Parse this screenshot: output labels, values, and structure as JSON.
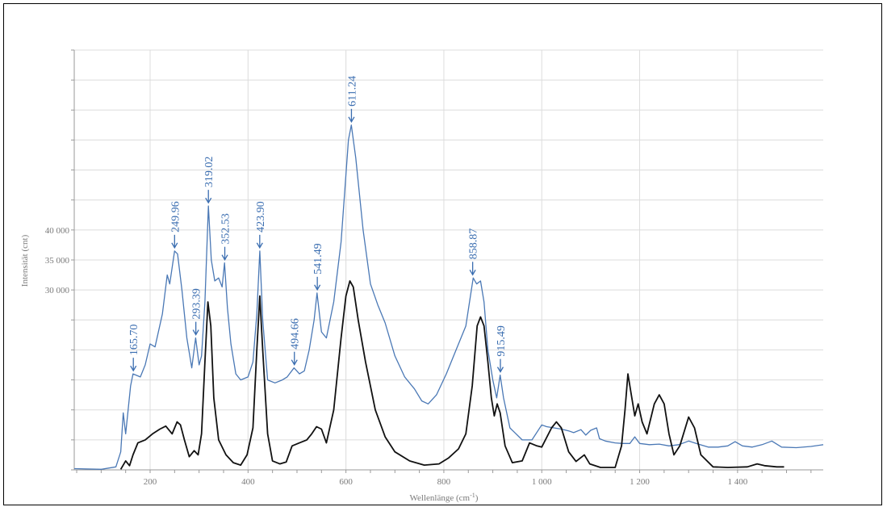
{
  "chart_data": {
    "type": "line",
    "title": "",
    "xlabel": "Wellenlänge (cm",
    "xlabel_sup": "-1",
    "xlabel_close": ")",
    "ylabel": "Intensität (cnt)",
    "xlim": [
      45,
      1575
    ],
    "ylim": [
      0,
      70000
    ],
    "grid": true,
    "x_ticks": [
      200,
      400,
      600,
      800,
      1000,
      1200,
      1400
    ],
    "x_tick_labels": [
      "200",
      "400",
      "600",
      "800",
      "1 000",
      "1 200",
      "1 400"
    ],
    "y_ticks": [
      30000,
      35000,
      40000
    ],
    "y_tick_labels": [
      "30 000",
      "35 000",
      "40 000"
    ],
    "series": [
      {
        "color": "#4a78b5",
        "points": [
          [
            45,
            200
          ],
          [
            100,
            100
          ],
          [
            130,
            500
          ],
          [
            140,
            3000
          ],
          [
            145,
            9500
          ],
          [
            150,
            6000
          ],
          [
            160,
            14000
          ],
          [
            165,
            16000
          ],
          [
            180,
            15500
          ],
          [
            190,
            17500
          ],
          [
            200,
            21000
          ],
          [
            210,
            20500
          ],
          [
            225,
            26000
          ],
          [
            235,
            32500
          ],
          [
            240,
            31000
          ],
          [
            250,
            36500
          ],
          [
            256,
            36000
          ],
          [
            265,
            30000
          ],
          [
            275,
            22000
          ],
          [
            285,
            17000
          ],
          [
            293,
            22000
          ],
          [
            300,
            17500
          ],
          [
            305,
            19000
          ],
          [
            312,
            28000
          ],
          [
            319,
            44000
          ],
          [
            325,
            35000
          ],
          [
            332,
            31500
          ],
          [
            340,
            32000
          ],
          [
            347,
            30500
          ],
          [
            352,
            34500
          ],
          [
            358,
            27000
          ],
          [
            365,
            21000
          ],
          [
            375,
            16000
          ],
          [
            385,
            15000
          ],
          [
            400,
            15500
          ],
          [
            410,
            18000
          ],
          [
            418,
            26000
          ],
          [
            424,
            36500
          ],
          [
            430,
            25000
          ],
          [
            440,
            15000
          ],
          [
            455,
            14500
          ],
          [
            470,
            15000
          ],
          [
            480,
            15500
          ],
          [
            494,
            17000
          ],
          [
            505,
            16000
          ],
          [
            515,
            16500
          ],
          [
            525,
            20000
          ],
          [
            535,
            25000
          ],
          [
            541,
            29500
          ],
          [
            550,
            23000
          ],
          [
            560,
            22000
          ],
          [
            575,
            28000
          ],
          [
            590,
            38000
          ],
          [
            605,
            55000
          ],
          [
            611,
            57500
          ],
          [
            620,
            52000
          ],
          [
            635,
            40000
          ],
          [
            650,
            31000
          ],
          [
            665,
            27500
          ],
          [
            680,
            24500
          ],
          [
            700,
            19000
          ],
          [
            720,
            15500
          ],
          [
            740,
            13500
          ],
          [
            755,
            11500
          ],
          [
            768,
            11000
          ],
          [
            785,
            12500
          ],
          [
            805,
            16000
          ],
          [
            825,
            20000
          ],
          [
            845,
            24000
          ],
          [
            860,
            32000
          ],
          [
            867,
            31000
          ],
          [
            875,
            31500
          ],
          [
            882,
            28000
          ],
          [
            890,
            20000
          ],
          [
            900,
            15000
          ],
          [
            908,
            12000
          ],
          [
            915,
            15800
          ],
          [
            922,
            12000
          ],
          [
            935,
            7000
          ],
          [
            960,
            5000
          ],
          [
            980,
            5000
          ],
          [
            1000,
            7500
          ],
          [
            1010,
            7200
          ],
          [
            1025,
            7000
          ],
          [
            1040,
            6800
          ],
          [
            1055,
            6500
          ],
          [
            1065,
            6200
          ],
          [
            1080,
            6700
          ],
          [
            1090,
            5800
          ],
          [
            1100,
            6600
          ],
          [
            1112,
            7000
          ],
          [
            1118,
            5200
          ],
          [
            1130,
            4800
          ],
          [
            1150,
            4500
          ],
          [
            1165,
            4400
          ],
          [
            1180,
            4400
          ],
          [
            1190,
            5500
          ],
          [
            1200,
            4400
          ],
          [
            1220,
            4200
          ],
          [
            1240,
            4300
          ],
          [
            1260,
            4000
          ],
          [
            1280,
            4200
          ],
          [
            1300,
            4800
          ],
          [
            1320,
            4300
          ],
          [
            1340,
            3800
          ],
          [
            1360,
            3800
          ],
          [
            1380,
            4000
          ],
          [
            1395,
            4700
          ],
          [
            1410,
            4000
          ],
          [
            1430,
            3800
          ],
          [
            1450,
            4200
          ],
          [
            1470,
            4800
          ],
          [
            1490,
            3800
          ],
          [
            1520,
            3700
          ],
          [
            1550,
            3900
          ],
          [
            1575,
            4200
          ]
        ]
      },
      {
        "color": "#111111",
        "points": [
          [
            140,
            100
          ],
          [
            150,
            1500
          ],
          [
            158,
            700
          ],
          [
            165,
            2500
          ],
          [
            175,
            4500
          ],
          [
            190,
            5000
          ],
          [
            205,
            6000
          ],
          [
            220,
            6800
          ],
          [
            232,
            7300
          ],
          [
            245,
            6000
          ],
          [
            255,
            8000
          ],
          [
            262,
            7500
          ],
          [
            270,
            5000
          ],
          [
            280,
            2200
          ],
          [
            290,
            3200
          ],
          [
            298,
            2500
          ],
          [
            305,
            6000
          ],
          [
            312,
            18000
          ],
          [
            318,
            28000
          ],
          [
            324,
            24000
          ],
          [
            330,
            12000
          ],
          [
            340,
            5000
          ],
          [
            355,
            2500
          ],
          [
            370,
            1200
          ],
          [
            385,
            800
          ],
          [
            398,
            2500
          ],
          [
            410,
            7000
          ],
          [
            418,
            20000
          ],
          [
            424,
            29000
          ],
          [
            430,
            20000
          ],
          [
            440,
            6000
          ],
          [
            450,
            1500
          ],
          [
            465,
            1000
          ],
          [
            478,
            1300
          ],
          [
            490,
            4000
          ],
          [
            505,
            4500
          ],
          [
            520,
            5000
          ],
          [
            530,
            6000
          ],
          [
            540,
            7200
          ],
          [
            550,
            6800
          ],
          [
            560,
            4500
          ],
          [
            575,
            10000
          ],
          [
            590,
            22000
          ],
          [
            600,
            29000
          ],
          [
            608,
            31500
          ],
          [
            615,
            30500
          ],
          [
            625,
            25000
          ],
          [
            640,
            18000
          ],
          [
            660,
            10000
          ],
          [
            680,
            5500
          ],
          [
            700,
            3000
          ],
          [
            730,
            1500
          ],
          [
            760,
            800
          ],
          [
            790,
            1000
          ],
          [
            810,
            2000
          ],
          [
            830,
            3500
          ],
          [
            845,
            6000
          ],
          [
            858,
            14000
          ],
          [
            868,
            24000
          ],
          [
            875,
            25500
          ],
          [
            882,
            24000
          ],
          [
            890,
            18000
          ],
          [
            897,
            12000
          ],
          [
            903,
            9000
          ],
          [
            909,
            11000
          ],
          [
            915,
            9500
          ],
          [
            925,
            4000
          ],
          [
            940,
            1200
          ],
          [
            960,
            1500
          ],
          [
            975,
            4500
          ],
          [
            990,
            4000
          ],
          [
            1000,
            3800
          ],
          [
            1020,
            7000
          ],
          [
            1030,
            8000
          ],
          [
            1040,
            7000
          ],
          [
            1055,
            3000
          ],
          [
            1070,
            1400
          ],
          [
            1087,
            2500
          ],
          [
            1098,
            1000
          ],
          [
            1120,
            400
          ],
          [
            1150,
            400
          ],
          [
            1163,
            4000
          ],
          [
            1170,
            10000
          ],
          [
            1176,
            16000
          ],
          [
            1182,
            13000
          ],
          [
            1190,
            9000
          ],
          [
            1197,
            11000
          ],
          [
            1205,
            8000
          ],
          [
            1215,
            6000
          ],
          [
            1230,
            11000
          ],
          [
            1240,
            12500
          ],
          [
            1250,
            11000
          ],
          [
            1260,
            6000
          ],
          [
            1270,
            2500
          ],
          [
            1282,
            4000
          ],
          [
            1300,
            8800
          ],
          [
            1312,
            7000
          ],
          [
            1325,
            2500
          ],
          [
            1350,
            500
          ],
          [
            1380,
            400
          ],
          [
            1420,
            500
          ],
          [
            1440,
            1000
          ],
          [
            1455,
            700
          ],
          [
            1480,
            500
          ],
          [
            1495,
            500
          ]
        ]
      }
    ],
    "annotations": [
      {
        "label": "165.70",
        "x": 165.7,
        "y": 16000
      },
      {
        "label": "249.96",
        "x": 249.96,
        "y": 36500
      },
      {
        "label": "293.39",
        "x": 293.39,
        "y": 22000
      },
      {
        "label": "319.02",
        "x": 319.02,
        "y": 44000
      },
      {
        "label": "352.53",
        "x": 352.53,
        "y": 34500
      },
      {
        "label": "423.90",
        "x": 423.9,
        "y": 36500
      },
      {
        "label": "494.66",
        "x": 494.66,
        "y": 17000
      },
      {
        "label": "541.49",
        "x": 541.49,
        "y": 29500
      },
      {
        "label": "611.24",
        "x": 611.24,
        "y": 57500
      },
      {
        "label": "858.87",
        "x": 858.87,
        "y": 32000
      },
      {
        "label": "915.49",
        "x": 915.49,
        "y": 15800
      }
    ],
    "annotation_color": "#3a6db0"
  }
}
